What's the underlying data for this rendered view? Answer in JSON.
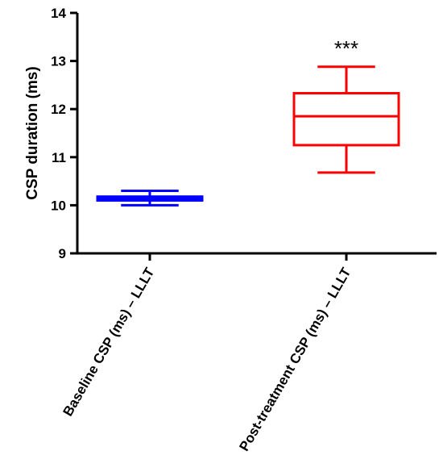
{
  "chart_data": {
    "type": "box",
    "title": "",
    "xlabel": "",
    "ylabel": "CSP duration (ms)",
    "ylim": [
      9,
      14
    ],
    "yticks": [
      9,
      10,
      11,
      12,
      13,
      14
    ],
    "grid": false,
    "legend": "none",
    "categories": [
      "Baseline CSP (ms) – LLLT",
      "Post-treatment CSP (ms) – LLLT"
    ],
    "boxes": [
      {
        "category": "Baseline CSP (ms) – LLLT",
        "min": 10.0,
        "q1": 10.1,
        "median": 10.14,
        "q3": 10.18,
        "max": 10.3,
        "color": "#0000ff"
      },
      {
        "category": "Post-treatment CSP (ms) – LLLT",
        "min": 10.68,
        "q1": 11.25,
        "median": 11.85,
        "q3": 12.33,
        "max": 12.88,
        "color": "#ff0000",
        "annotation": "***"
      }
    ]
  }
}
